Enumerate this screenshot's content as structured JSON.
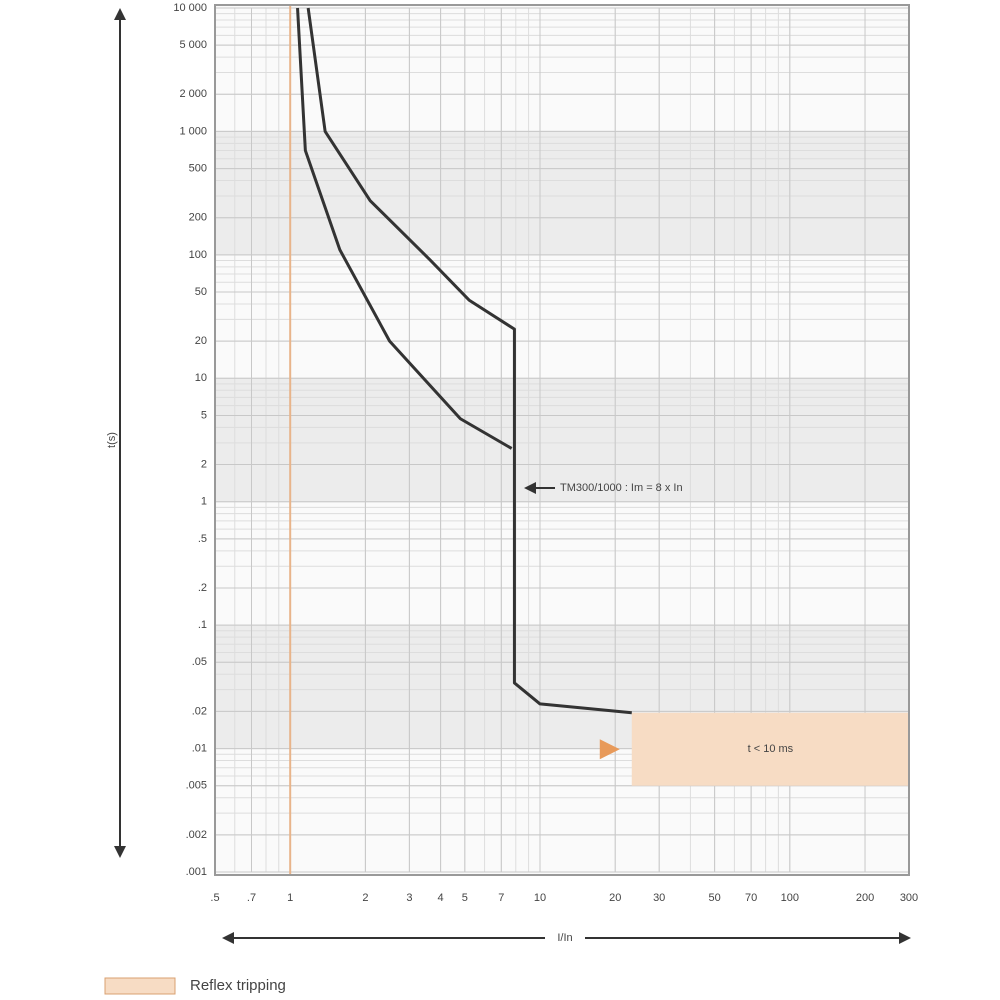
{
  "chart_data": {
    "type": "line",
    "x_label": "I/In",
    "y_label": "t(s)",
    "log_x": true,
    "log_y": true,
    "grid": true,
    "minor_grid": true,
    "xlim": [
      0.5,
      300
    ],
    "ylim": [
      0.001,
      10000
    ],
    "xticks": [
      {
        "value": 0.5,
        "label": ".5"
      },
      {
        "value": 0.7,
        "label": ".7"
      },
      1,
      2,
      3,
      4,
      5,
      7,
      10,
      20,
      30,
      50,
      70,
      100,
      200,
      300
    ],
    "yticks": [
      {
        "value": 10000,
        "label": "10 000"
      },
      {
        "value": 5000,
        "label": "5 000"
      },
      {
        "value": 2000,
        "label": "2 000"
      },
      {
        "value": 1000,
        "label": "1 000"
      },
      500,
      200,
      100,
      50,
      20,
      10,
      5,
      2,
      1,
      {
        "value": 0.5,
        "label": ".5"
      },
      {
        "value": 0.2,
        "label": ".2"
      },
      {
        "value": 0.1,
        "label": ".1"
      },
      {
        "value": 0.05,
        "label": ".05"
      },
      {
        "value": 0.02,
        "label": ".02"
      },
      {
        "value": 0.01,
        "label": ".01"
      },
      {
        "value": 0.005,
        "label": ".005"
      },
      {
        "value": 0.002,
        "label": ".002"
      },
      {
        "value": 0.001,
        "label": ".001"
      }
    ],
    "reference_x": 1,
    "reference_color": "#e8b48a",
    "series": [
      {
        "color": "#333333",
        "x": [
          1.07,
          1.15,
          1.58,
          2.5,
          4.8,
          7.7
        ],
        "values": [
          10000,
          700,
          110,
          20,
          4.7,
          2.7
        ]
      },
      {
        "color": "#333333",
        "x": [
          1.18,
          1.38,
          2.09,
          3.63,
          5.2,
          7.9,
          7.9,
          10,
          23.3
        ],
        "values": [
          10000,
          1000,
          275,
          91,
          43,
          25,
          0.034,
          0.023,
          0.0195
        ]
      }
    ],
    "reflex_zone": {
      "x": [
        23.3,
        300
      ],
      "y": [
        0.005,
        0.0195
      ],
      "label": "t < 10 ms",
      "color": "#f7dcc4"
    },
    "annotation": "TM300/1000 : Im = 8 x In",
    "legend": "Reflex tripping"
  }
}
